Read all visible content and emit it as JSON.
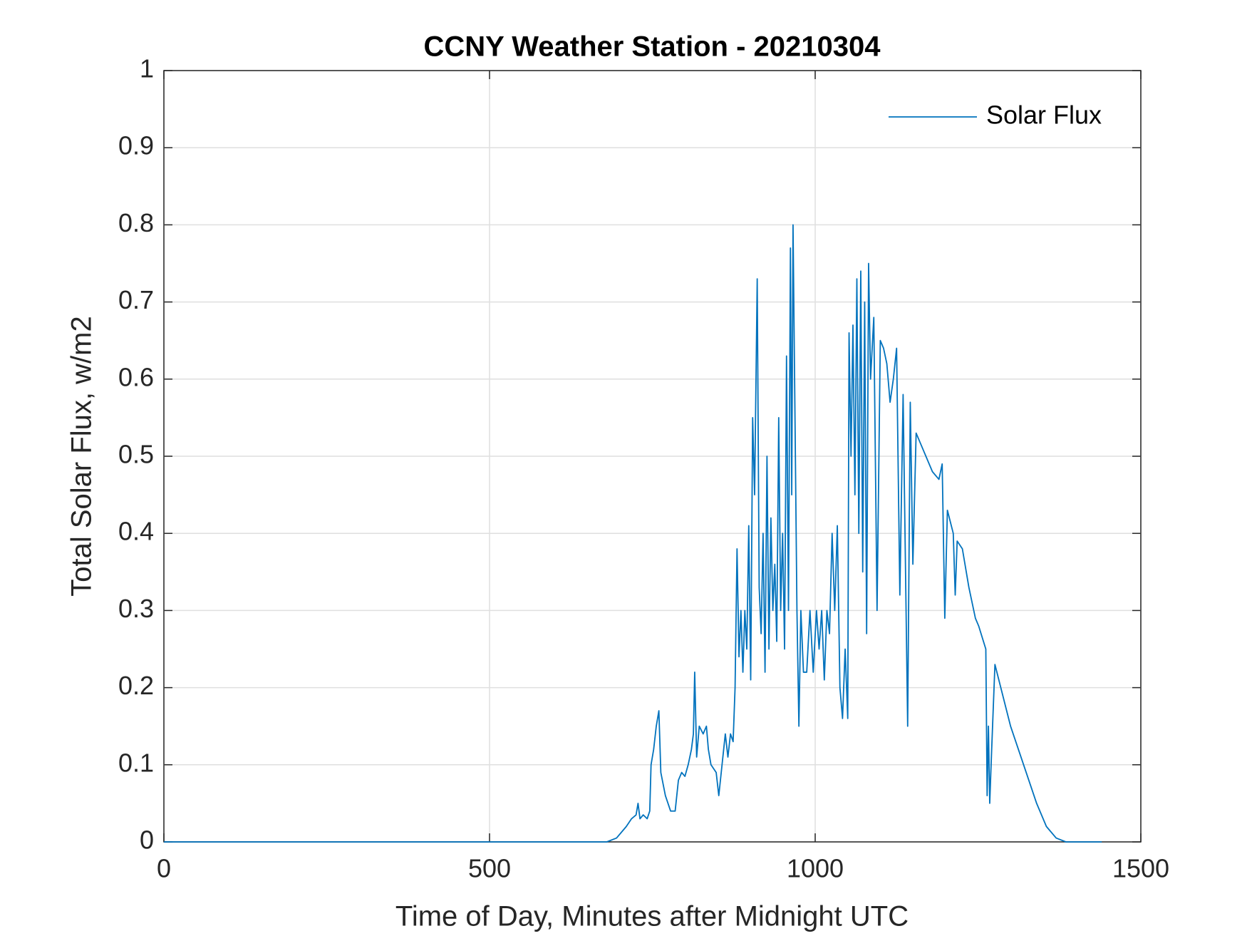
{
  "chart_data": {
    "type": "line",
    "title": "CCNY Weather Station - 20210304",
    "xlabel": "Time of Day, Minutes after Midnight UTC",
    "ylabel": "Total Solar Flux, w/m2",
    "x": [
      0,
      680,
      695,
      710,
      718,
      725,
      728,
      731,
      736,
      742,
      746,
      748,
      752,
      756,
      760,
      763,
      770,
      778,
      785,
      790,
      795,
      800,
      805,
      810,
      813,
      815,
      818,
      822,
      828,
      833,
      836,
      840,
      848,
      852,
      857,
      862,
      866,
      870,
      874,
      877,
      880,
      883,
      886,
      889,
      892,
      895,
      898,
      901,
      904,
      907,
      911,
      914,
      917,
      920,
      923,
      926,
      929,
      932,
      935,
      938,
      941,
      944,
      947,
      950,
      953,
      956,
      959,
      962,
      964,
      966,
      969,
      972,
      975,
      978,
      982,
      987,
      992,
      997,
      1002,
      1006,
      1010,
      1014,
      1018,
      1022,
      1026,
      1030,
      1034,
      1038,
      1042,
      1046,
      1050,
      1052,
      1055,
      1058,
      1061,
      1064,
      1067,
      1070,
      1073,
      1076,
      1079,
      1082,
      1085,
      1090,
      1095,
      1100,
      1105,
      1110,
      1115,
      1120,
      1125,
      1130,
      1135,
      1142,
      1146,
      1150,
      1155,
      1165,
      1180,
      1190,
      1195,
      1199,
      1203,
      1212,
      1215,
      1218,
      1226,
      1236,
      1246,
      1251,
      1262,
      1264,
      1266,
      1268,
      1271,
      1276,
      1285,
      1300,
      1320,
      1340,
      1355,
      1370,
      1385,
      1440
    ],
    "series": [
      {
        "name": "Solar Flux",
        "color": "#0072bd",
        "values": [
          0,
          0,
          0.005,
          0.02,
          0.03,
          0.035,
          0.05,
          0.03,
          0.035,
          0.03,
          0.04,
          0.1,
          0.12,
          0.15,
          0.17,
          0.09,
          0.06,
          0.04,
          0.04,
          0.08,
          0.09,
          0.085,
          0.1,
          0.12,
          0.14,
          0.22,
          0.11,
          0.15,
          0.14,
          0.15,
          0.12,
          0.1,
          0.09,
          0.06,
          0.1,
          0.14,
          0.11,
          0.14,
          0.13,
          0.2,
          0.38,
          0.24,
          0.3,
          0.22,
          0.3,
          0.25,
          0.41,
          0.21,
          0.55,
          0.45,
          0.73,
          0.33,
          0.27,
          0.4,
          0.22,
          0.5,
          0.25,
          0.42,
          0.3,
          0.36,
          0.26,
          0.55,
          0.3,
          0.4,
          0.25,
          0.63,
          0.3,
          0.77,
          0.45,
          0.8,
          0.55,
          0.3,
          0.15,
          0.3,
          0.22,
          0.22,
          0.3,
          0.22,
          0.3,
          0.25,
          0.3,
          0.21,
          0.3,
          0.27,
          0.4,
          0.3,
          0.41,
          0.2,
          0.16,
          0.25,
          0.16,
          0.66,
          0.5,
          0.67,
          0.45,
          0.73,
          0.4,
          0.74,
          0.35,
          0.7,
          0.27,
          0.75,
          0.6,
          0.68,
          0.3,
          0.65,
          0.64,
          0.62,
          0.57,
          0.6,
          0.64,
          0.32,
          0.58,
          0.15,
          0.57,
          0.36,
          0.53,
          0.51,
          0.48,
          0.47,
          0.49,
          0.29,
          0.43,
          0.4,
          0.32,
          0.39,
          0.38,
          0.33,
          0.29,
          0.28,
          0.25,
          0.06,
          0.15,
          0.05,
          0.12,
          0.23,
          0.2,
          0.15,
          0.1,
          0.05,
          0.02,
          0.005,
          0,
          0
        ]
      }
    ],
    "xlim": [
      0,
      1500
    ],
    "xticks": [
      0,
      500,
      1000,
      1500
    ],
    "ylim": [
      0,
      1
    ],
    "yticks": [
      0,
      0.1,
      0.2,
      0.3,
      0.4,
      0.5,
      0.6,
      0.7,
      0.8,
      0.9,
      1
    ],
    "grid": true,
    "legend": "northeast"
  }
}
